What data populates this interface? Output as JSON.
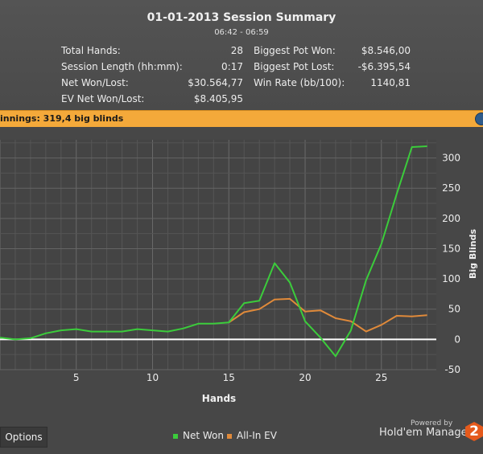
{
  "header": {
    "title": "01-01-2013 Session Summary",
    "time_range": "06:42 - 06:59"
  },
  "stats": {
    "total_hands_label": "Total Hands:",
    "total_hands_value": "28",
    "session_length_label": "Session Length (hh:mm):",
    "session_length_value": "0:17",
    "net_won_label": "Net Won/Lost:",
    "net_won_value": "$30.564,77",
    "ev_net_won_label": "EV Net Won/Lost:",
    "ev_net_won_value": "$8.405,95",
    "biggest_pot_won_label": "Biggest Pot Won:",
    "biggest_pot_won_value": "$8.546,00",
    "biggest_pot_lost_label": "Biggest Pot Lost:",
    "biggest_pot_lost_value": "-$6.395,54",
    "win_rate_label": "Win Rate (bb/100):",
    "win_rate_value": "1140,81"
  },
  "banner": {
    "text": "innings:  319,4 big blinds"
  },
  "footer": {
    "options_label": "Options",
    "powered_by": "Powered by",
    "brand": "Hold'em Manager",
    "brand_badge": "2"
  },
  "chart_data": {
    "type": "line",
    "xlabel": "Hands",
    "ylabel": "Big Blinds",
    "xlim": [
      0,
      28.6
    ],
    "ylim": [
      -50,
      330
    ],
    "xticks": [
      5,
      10,
      15,
      20,
      25
    ],
    "yticks": [
      -50,
      0,
      50,
      100,
      150,
      200,
      250,
      300
    ],
    "grid": true,
    "legend_position": "bottom",
    "series": [
      {
        "name": "Net Won",
        "color": "#3bcc3b",
        "x": [
          0,
          1,
          2,
          3,
          4,
          5,
          6,
          7,
          8,
          9,
          10,
          11,
          12,
          13,
          14,
          15,
          16,
          17,
          18,
          19,
          20,
          21,
          22,
          23,
          24,
          25,
          26,
          27,
          28
        ],
        "values": [
          3,
          0,
          2,
          10,
          15,
          17,
          13,
          13,
          13,
          17,
          15,
          13,
          18,
          26,
          26,
          28,
          60,
          64,
          126,
          94,
          30,
          3,
          -28,
          15,
          98,
          158,
          240,
          318,
          319.4
        ]
      },
      {
        "name": "All-In EV",
        "color": "#e08a3a",
        "x": [
          15,
          16,
          17,
          18,
          19,
          20,
          21,
          22,
          23,
          24,
          25,
          26,
          27,
          28
        ],
        "values": [
          28,
          45,
          50,
          66,
          67,
          46,
          48,
          35,
          30,
          13,
          24,
          39,
          38,
          40
        ]
      }
    ]
  }
}
